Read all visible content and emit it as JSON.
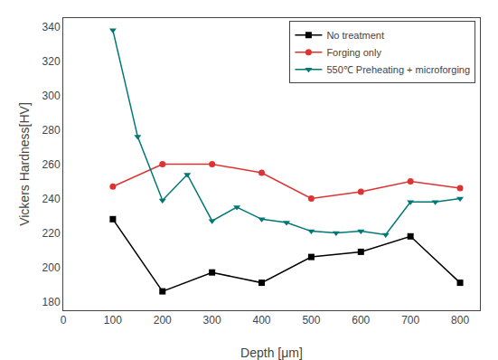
{
  "chart_data": {
    "type": "line",
    "xlabel": "Depth [μm]",
    "ylabel": "Vickers Hardness[HV]",
    "xlim": [
      0,
      840
    ],
    "ylim": [
      175,
      345
    ],
    "xticks": [
      0,
      100,
      200,
      300,
      400,
      500,
      600,
      700,
      800
    ],
    "yticks": [
      180,
      200,
      220,
      240,
      260,
      280,
      300,
      320,
      340
    ],
    "grid": false,
    "legend": "upper right",
    "series": [
      {
        "name": "No treatment",
        "color": "#000000",
        "marker": "square",
        "x": [
          100,
          200,
          300,
          400,
          500,
          600,
          700,
          800
        ],
        "values": [
          228,
          186,
          197,
          191,
          206,
          209,
          218,
          191
        ]
      },
      {
        "name": "Forging only",
        "color": "#dd3333",
        "marker": "circle",
        "x": [
          100,
          200,
          300,
          400,
          500,
          600,
          700,
          800
        ],
        "values": [
          247,
          260,
          260,
          255,
          240,
          244,
          250,
          246
        ]
      },
      {
        "name": "550℃ Preheating + microforging",
        "color": "#007777",
        "marker": "triangle-down",
        "x": [
          100,
          150,
          200,
          250,
          300,
          350,
          400,
          450,
          500,
          550,
          600,
          650,
          700,
          750,
          800
        ],
        "values": [
          338,
          276,
          239,
          254,
          227,
          235,
          228,
          226,
          221,
          220,
          221,
          219,
          238,
          238,
          240
        ]
      }
    ]
  }
}
